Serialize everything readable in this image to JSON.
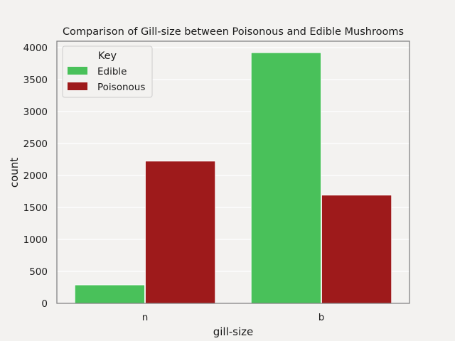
{
  "chart_data": {
    "type": "bar",
    "title": "Comparison of Gill-size between Poisonous and Edible Mushrooms",
    "xlabel": "gill-size",
    "ylabel": "count",
    "categories": [
      "n",
      "b"
    ],
    "series": [
      {
        "name": "Edible",
        "values": [
          288,
          3920
        ],
        "color": "#49c15a"
      },
      {
        "name": "Poisonous",
        "values": [
          2224,
          1692
        ],
        "color": "#9e1a1b"
      }
    ],
    "ylim": [
      0,
      4100
    ],
    "yticks": [
      0,
      500,
      1000,
      1500,
      2000,
      2500,
      3000,
      3500,
      4000
    ],
    "grid": true,
    "legend": {
      "title": "Key",
      "position": "top-left"
    }
  },
  "colors": {
    "background": "#f3f2f0",
    "plot_background": "#f3f2f0",
    "grid": "#ffffff",
    "spine": "#7f7f7f",
    "legend_border": "#cccccc"
  }
}
